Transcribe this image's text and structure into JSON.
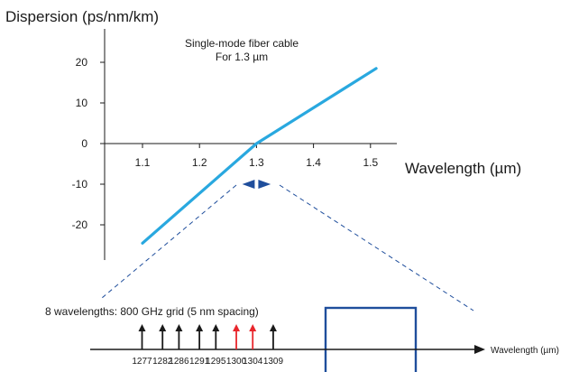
{
  "chart_data": [
    {
      "type": "line",
      "title": "Single-mode fiber cable",
      "subtitle": "For 1.3 µm",
      "ylabel": "Dispersion (ps/nm/km)",
      "xlabel": "Wavelength (µm)",
      "xticks": [
        "1.1",
        "1.2",
        "1.3",
        "1.4",
        "1.5"
      ],
      "yticks": [
        "20",
        "10",
        "0",
        "-10",
        "-20"
      ],
      "xlim": [
        1.05,
        1.56
      ],
      "ylim": [
        -27,
        27
      ],
      "grid": false,
      "series": [
        {
          "x": [
            1.1,
            1.3,
            1.51
          ],
          "y": [
            -24.5,
            0,
            18.5
          ],
          "color": "#29a8df"
        }
      ],
      "zero_dispersion_marker": {
        "x_range": [
          1.275,
          1.325
        ],
        "y": -10,
        "color": "#1f4e9c"
      }
    },
    {
      "type": "scatter",
      "annotation": "8 wavelengths: 800 GHz grid (5 nm spacing)",
      "xlabel": "Wavelength (µm)",
      "x": [
        1277,
        1282,
        1286,
        1291,
        1295,
        1300,
        1304,
        1309
      ],
      "labels": [
        "1277",
        "1282",
        "1286",
        "1291",
        "1295",
        "1300",
        "1304",
        "1309"
      ],
      "highlighted": [
        "1300",
        "1304"
      ],
      "highlight_color": "#e8262c",
      "normal_color": "#1a1a1a",
      "box_color": "#1f4e9c"
    }
  ]
}
